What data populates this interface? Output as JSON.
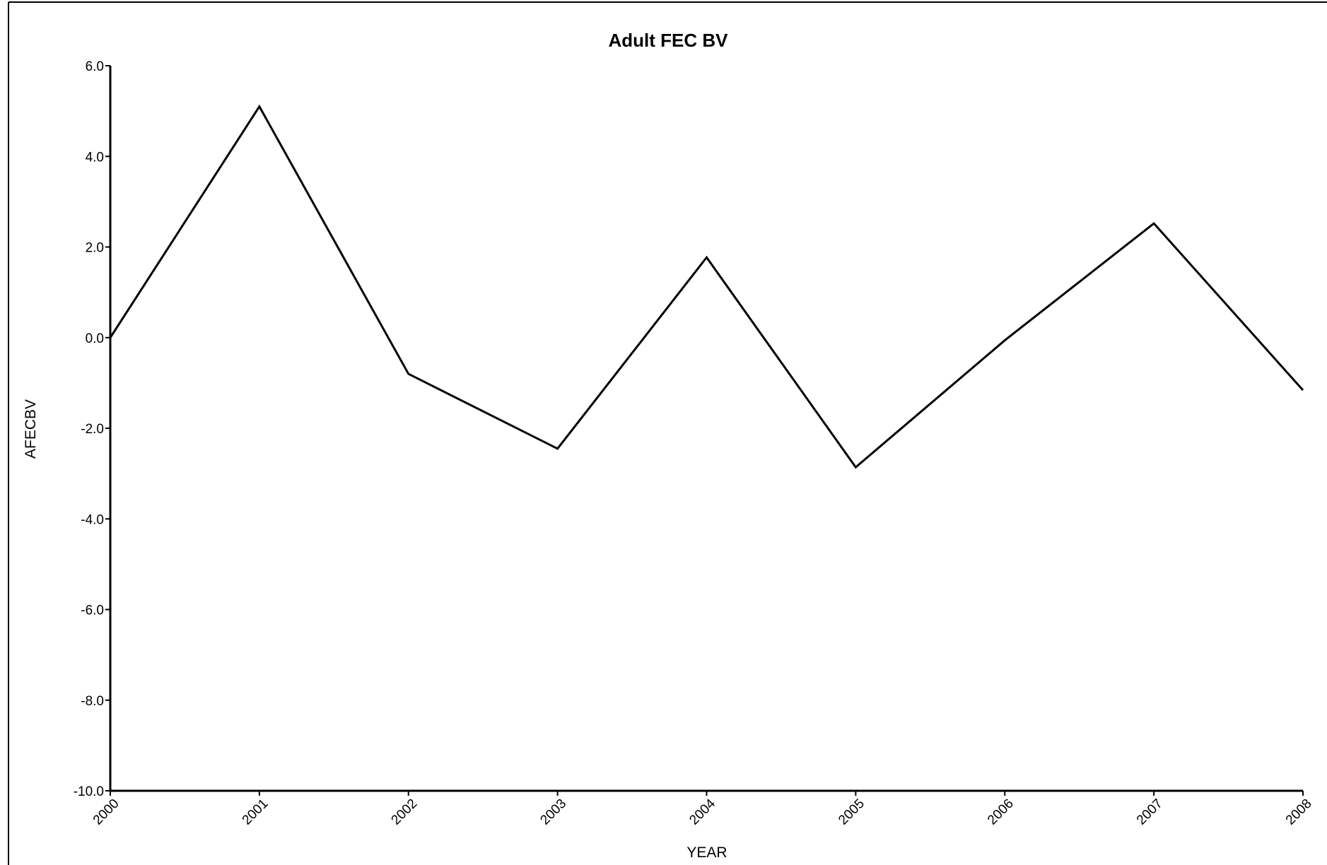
{
  "chart_data": {
    "type": "line",
    "title": "Adult FEC BV",
    "x_label": "YEAR",
    "y_label": "AFECBV",
    "x": [
      2000,
      2001,
      2002,
      2003,
      2004,
      2005,
      2006,
      2007,
      2008
    ],
    "series": [
      {
        "name": "AFECBV",
        "color": "#000000",
        "values": [
          0.0,
          5.1,
          -0.8,
          -2.45,
          1.77,
          -2.86,
          -0.06,
          2.52,
          -1.16
        ]
      }
    ],
    "xlim": [
      2000,
      2008
    ],
    "xticks": [
      2000,
      2001,
      2002,
      2003,
      2004,
      2005,
      2006,
      2007,
      2008
    ],
    "ylim": [
      -10,
      6
    ],
    "yticks": [
      {
        "value": -10,
        "label": "-10.0"
      },
      {
        "value": -8,
        "label": "-8.0"
      },
      {
        "value": -6,
        "label": "-6.0"
      },
      {
        "value": -4,
        "label": "-4.0"
      },
      {
        "value": -2,
        "label": "-2.0"
      },
      {
        "value": 0,
        "label": "0.0"
      },
      {
        "value": 2,
        "label": "2.0"
      },
      {
        "value": 4,
        "label": "4.0"
      },
      {
        "value": 6,
        "label": "6.0"
      }
    ],
    "grid": false
  }
}
